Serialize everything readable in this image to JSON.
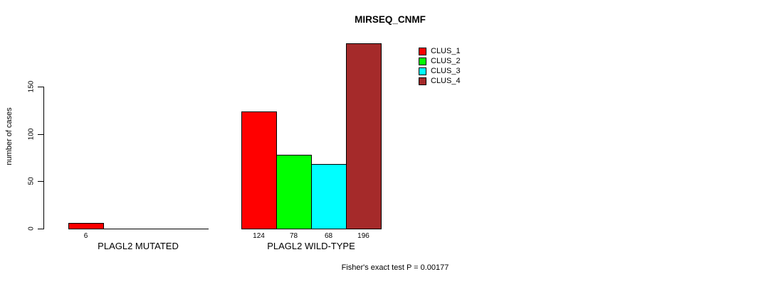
{
  "chart_data": {
    "type": "bar",
    "title": "MIRSEQ_CNMF",
    "ylabel": "number of cases",
    "yticks": [
      "0",
      "50",
      "100",
      "150"
    ],
    "ylim": [
      0,
      200
    ],
    "grid": false,
    "background": "#FFFFFF",
    "axis_color": "#000000",
    "categories": [
      "PLAGL2 MUTATED",
      "PLAGL2 WILD-TYPE"
    ],
    "series": [
      {
        "name": "CLUS_1",
        "color": "#FF0000",
        "values": [
          6,
          124
        ]
      },
      {
        "name": "CLUS_2",
        "color": "#00FF00",
        "values": [
          0,
          78
        ]
      },
      {
        "name": "CLUS_3",
        "color": "#00FFFF",
        "values": [
          0,
          68
        ]
      },
      {
        "name": "CLUS_4",
        "color": "#A52A2A",
        "values": [
          0,
          196
        ]
      }
    ],
    "bar_value_labels": [
      [
        "6",
        "",
        "",
        ""
      ],
      [
        "124",
        "78",
        "68",
        "196"
      ]
    ],
    "legend": {
      "position": "top-right",
      "entries": [
        "CLUS_1",
        "CLUS_2",
        "CLUS_3",
        "CLUS_4"
      ]
    },
    "annotation": "Fisher's exact test P = 0.00177"
  }
}
